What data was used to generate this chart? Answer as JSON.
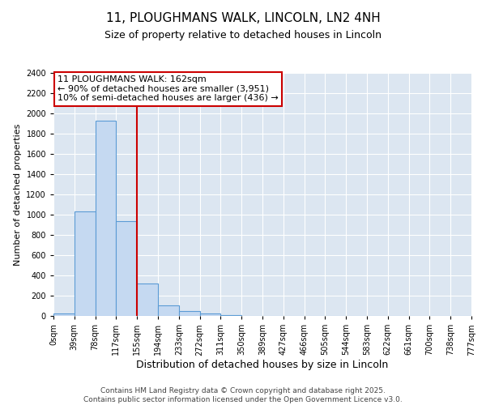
{
  "title_line1": "11, PLOUGHMANS WALK, LINCOLN, LN2 4NH",
  "title_line2": "Size of property relative to detached houses in Lincoln",
  "xlabel": "Distribution of detached houses by size in Lincoln",
  "ylabel": "Number of detached properties",
  "annotation_text": "11 PLOUGHMANS WALK: 162sqm\n← 90% of detached houses are smaller (3,951)\n10% of semi-detached houses are larger (436) →",
  "footer_line1": "Contains HM Land Registry data © Crown copyright and database right 2025.",
  "footer_line2": "Contains public sector information licensed under the Open Government Licence v3.0.",
  "bin_labels": [
    "0sqm",
    "39sqm",
    "78sqm",
    "117sqm",
    "155sqm",
    "194sqm",
    "233sqm",
    "272sqm",
    "311sqm",
    "350sqm",
    "389sqm",
    "427sqm",
    "466sqm",
    "505sqm",
    "544sqm",
    "583sqm",
    "622sqm",
    "661sqm",
    "700sqm",
    "738sqm",
    "777sqm"
  ],
  "bar_values": [
    25,
    1030,
    1930,
    940,
    320,
    105,
    50,
    25,
    5,
    0,
    0,
    0,
    0,
    0,
    0,
    0,
    0,
    0,
    0,
    0
  ],
  "bar_color": "#c5d9f1",
  "bar_edge_color": "#5b9bd5",
  "red_line_bin": 4,
  "red_line_color": "#cc0000",
  "annotation_box_color": "#cc0000",
  "ylim": [
    0,
    2400
  ],
  "yticks": [
    0,
    200,
    400,
    600,
    800,
    1000,
    1200,
    1400,
    1600,
    1800,
    2000,
    2200,
    2400
  ],
  "grid_color": "#ffffff",
  "background_color": "#dce6f1",
  "title_fontsize": 11,
  "subtitle_fontsize": 9,
  "ylabel_fontsize": 8,
  "xlabel_fontsize": 9,
  "tick_fontsize": 7,
  "footer_fontsize": 6.5,
  "annot_fontsize": 8
}
